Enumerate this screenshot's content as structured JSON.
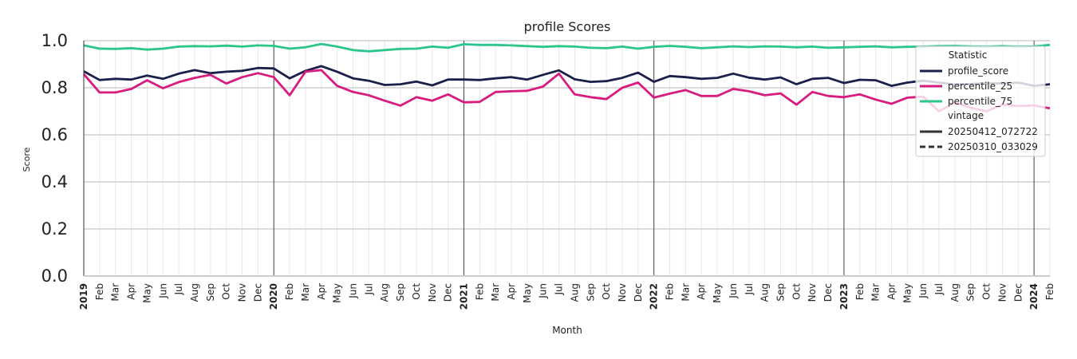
{
  "colors": {
    "profile_score": "#1b1f4b",
    "percentile_25": "#d81b7f",
    "percentile_75": "#2cc58a",
    "grid_major": "#c8c8c8",
    "grid_minor": "#e8e8e8",
    "year_line": "#444444"
  },
  "chart_data": {
    "type": "line",
    "title": "profile Scores",
    "xlabel": "Month",
    "ylabel": "Score",
    "ylim": [
      0,
      1
    ],
    "yticks": [
      "0.0",
      "0.2",
      "0.4",
      "0.6",
      "0.8",
      "1.0"
    ],
    "grid": true,
    "legend": {
      "placement": "top-right",
      "statistic_title": "Statistic",
      "statistic_entries": [
        "profile_score",
        "percentile_25",
        "percentile_75"
      ],
      "vintage_title": "vintage",
      "vintage_entries": [
        {
          "label": "20250412_072722",
          "style": "solid"
        },
        {
          "label": "20250310_033029",
          "style": "dashed"
        }
      ]
    },
    "x_labels": [
      "2019",
      "Feb",
      "Mar",
      "Apr",
      "May",
      "Jun",
      "Jul",
      "Aug",
      "Sep",
      "Oct",
      "Nov",
      "Dec",
      "2020",
      "Feb",
      "Mar",
      "Apr",
      "May",
      "Jun",
      "Jul",
      "Aug",
      "Sep",
      "Oct",
      "Nov",
      "Dec",
      "2021",
      "Feb",
      "Mar",
      "Apr",
      "May",
      "Jun",
      "Jul",
      "Aug",
      "Sep",
      "Oct",
      "Nov",
      "Dec",
      "2022",
      "Feb",
      "Mar",
      "Apr",
      "May",
      "Jun",
      "Jul",
      "Aug",
      "Sep",
      "Oct",
      "Nov",
      "Dec",
      "2023",
      "Feb",
      "Mar",
      "Apr",
      "May",
      "Jun",
      "Jul",
      "Aug",
      "Sep",
      "Oct",
      "Nov",
      "Dec",
      "2024",
      "Feb"
    ],
    "series": [
      {
        "name": "profile_score",
        "vintage": "20250412_072722",
        "color_key": "profile_score",
        "style": "solid",
        "values": [
          0.87,
          0.833,
          0.838,
          0.835,
          0.852,
          0.838,
          0.86,
          0.875,
          0.862,
          0.868,
          0.872,
          0.884,
          0.882,
          0.84,
          0.872,
          0.892,
          0.868,
          0.84,
          0.83,
          0.812,
          0.815,
          0.826,
          0.81,
          0.835,
          0.835,
          0.833,
          0.84,
          0.845,
          0.835,
          0.855,
          0.874,
          0.836,
          0.825,
          0.828,
          0.842,
          0.864,
          0.825,
          0.85,
          0.845,
          0.838,
          0.842,
          0.86,
          0.843,
          0.835,
          0.844,
          0.815,
          0.838,
          0.842,
          0.82,
          0.834,
          0.832,
          0.808,
          0.822,
          0.83,
          0.822,
          0.814,
          0.816,
          0.82,
          0.818,
          0.822,
          0.808,
          0.815
        ]
      },
      {
        "name": "percentile_25",
        "vintage": "20250412_072722",
        "color_key": "percentile_25",
        "style": "solid",
        "values": [
          0.858,
          0.78,
          0.78,
          0.795,
          0.832,
          0.798,
          0.824,
          0.842,
          0.855,
          0.818,
          0.845,
          0.862,
          0.845,
          0.768,
          0.868,
          0.875,
          0.808,
          0.782,
          0.768,
          0.745,
          0.724,
          0.76,
          0.745,
          0.772,
          0.738,
          0.74,
          0.782,
          0.785,
          0.787,
          0.805,
          0.86,
          0.772,
          0.76,
          0.752,
          0.8,
          0.822,
          0.758,
          0.775,
          0.79,
          0.765,
          0.765,
          0.795,
          0.785,
          0.768,
          0.776,
          0.728,
          0.782,
          0.765,
          0.76,
          0.772,
          0.75,
          0.732,
          0.758,
          0.762,
          0.7,
          0.738,
          0.715,
          0.7,
          0.728,
          0.722,
          0.725,
          0.713
        ]
      },
      {
        "name": "percentile_75",
        "vintage": "20250412_072722",
        "color_key": "percentile_75",
        "style": "solid",
        "values": [
          0.98,
          0.966,
          0.965,
          0.968,
          0.962,
          0.966,
          0.975,
          0.977,
          0.976,
          0.979,
          0.975,
          0.98,
          0.978,
          0.966,
          0.972,
          0.986,
          0.975,
          0.96,
          0.955,
          0.96,
          0.965,
          0.966,
          0.975,
          0.97,
          0.985,
          0.982,
          0.982,
          0.98,
          0.977,
          0.974,
          0.977,
          0.975,
          0.97,
          0.968,
          0.975,
          0.966,
          0.974,
          0.978,
          0.974,
          0.968,
          0.972,
          0.976,
          0.973,
          0.976,
          0.975,
          0.972,
          0.975,
          0.97,
          0.972,
          0.974,
          0.976,
          0.972,
          0.974,
          0.975,
          0.977,
          0.978,
          0.976,
          0.975,
          0.977,
          0.975,
          0.976,
          0.982
        ]
      }
    ]
  }
}
